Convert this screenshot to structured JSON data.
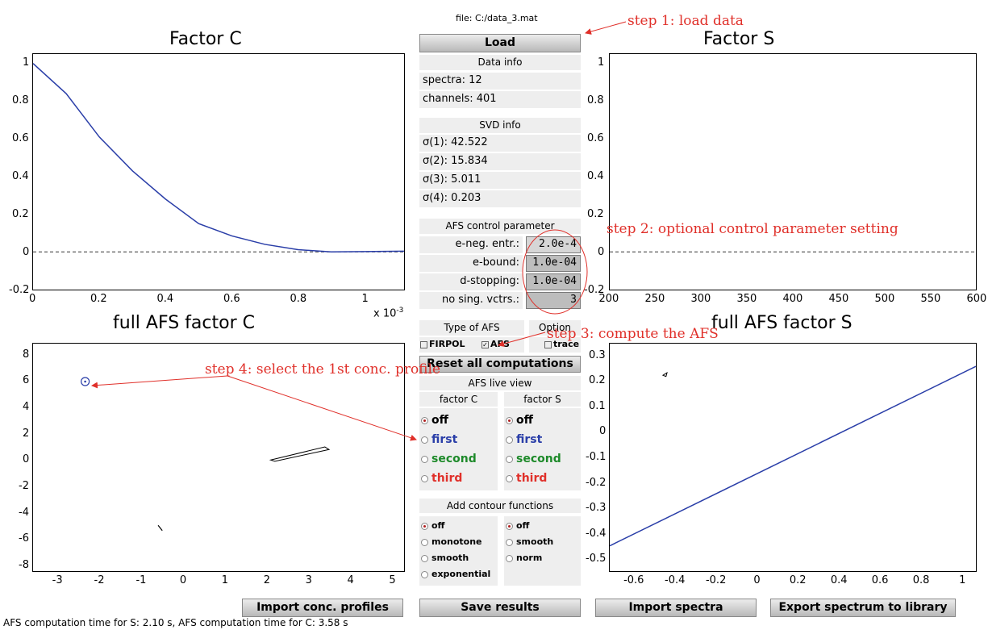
{
  "file_label": "file: C:/data_3.mat",
  "buttons": {
    "load": "Load",
    "reset": "Reset all computations",
    "import_conc": "Import conc. profiles",
    "save_results": "Save results",
    "import_spectra": "Import spectra",
    "export_spectrum": "Export spectrum to library"
  },
  "data_info": {
    "header": "Data info",
    "spectra": "spectra: 12",
    "channels": "channels: 401"
  },
  "svd_info": {
    "header": "SVD info",
    "s1": "σ(1): 42.522",
    "s2": "σ(2): 15.834",
    "s3": "σ(3): 5.011",
    "s4": "σ(4): 0.203"
  },
  "afs_params": {
    "header": "AFS control parameter",
    "neg_entr_label": "e-neg. entr.:",
    "neg_entr_value": "2.0e-4",
    "bound_label": "e-bound:",
    "bound_value": "1.0e-04",
    "stopping_label": "d-stopping:",
    "stopping_value": "1.0e-04",
    "nsing_label": "no sing. vctrs.:",
    "nsing_value": "3"
  },
  "afs_type": {
    "header": "Type of AFS",
    "firpol": "FIRPOL",
    "afs": "AFS",
    "option_header": "Option",
    "trace": "trace"
  },
  "live_view": {
    "header": "AFS live view",
    "factor_c": "factor C",
    "factor_s": "factor S",
    "opts": [
      "off",
      "first",
      "second",
      "third"
    ],
    "colors": [
      "#000000",
      "#2a3ea8",
      "#1e8a2a",
      "#e0302a"
    ]
  },
  "contour": {
    "header": "Add contour functions",
    "left": [
      "off",
      "monotone",
      "smooth",
      "exponential"
    ],
    "right": [
      "off",
      "smooth",
      "norm"
    ]
  },
  "status": "AFS computation time for S: 2.10 s,  AFS computation time for C: 3.58 s",
  "annotations": {
    "step1": "step 1: load data",
    "step2": "step 2: optional control parameter setting",
    "step3": "step 3: compute the AFS",
    "step4": "step 4: select the 1st conc. profile"
  },
  "plots": {
    "factor_c": {
      "title": "Factor C",
      "xticks": [
        "0",
        "0.2",
        "0.4",
        "0.6",
        "0.8",
        "1"
      ],
      "yticks": [
        "1",
        "0.8",
        "0.6",
        "0.4",
        "0.2",
        "0",
        "-0.2"
      ],
      "exponent": "x 10",
      "exponent_power": "-3"
    },
    "factor_s": {
      "title": "Factor S",
      "xticks": [
        "200",
        "250",
        "300",
        "350",
        "400",
        "450",
        "500",
        "550",
        "600"
      ],
      "yticks": [
        "1",
        "0.8",
        "0.6",
        "0.4",
        "0.2",
        "0",
        "-0.2"
      ]
    },
    "full_afs_c": {
      "title": "full AFS factor C",
      "xticks": [
        "-3",
        "-2",
        "-1",
        "0",
        "1",
        "2",
        "3",
        "4",
        "5"
      ],
      "yticks": [
        "8",
        "6",
        "4",
        "2",
        "0",
        "-2",
        "-4",
        "-6",
        "-8"
      ]
    },
    "full_afs_s": {
      "title": "full AFS factor S",
      "xticks": [
        "-0.6",
        "-0.4",
        "-0.2",
        "0",
        "0.2",
        "0.4",
        "0.6",
        "0.8",
        "1"
      ],
      "yticks": [
        "0.3",
        "0.2",
        "0.1",
        "0",
        "-0.1",
        "-0.2",
        "-0.3",
        "-0.4",
        "-0.5"
      ]
    }
  },
  "chart_data": [
    {
      "type": "line",
      "title": "Factor C",
      "x": [
        0,
        0.0001,
        0.0002,
        0.0003,
        0.0004,
        0.0005,
        0.0006,
        0.0007,
        0.0008,
        0.0009,
        0.001,
        0.00112
      ],
      "series": [
        {
          "values": [
            1.0,
            0.84,
            0.61,
            0.43,
            0.28,
            0.15,
            0.085,
            0.04,
            0.012,
            0.0,
            0.002,
            0.004
          ]
        }
      ],
      "xlim": [
        0,
        0.00112
      ],
      "ylim": [
        -0.2,
        1.05
      ],
      "baseline": 0
    },
    {
      "type": "line",
      "title": "Factor S",
      "series": [],
      "xlim": [
        200,
        600
      ],
      "ylim": [
        -0.2,
        1.05
      ],
      "baseline": 0
    },
    {
      "type": "scatter",
      "title": "full AFS factor C",
      "xlim": [
        -3.6,
        5.3
      ],
      "ylim": [
        -8.5,
        8.9
      ],
      "marker": {
        "x": -2.35,
        "y": 6.0
      },
      "region": [
        [
          2.1,
          0.0
        ],
        [
          3.4,
          1.0
        ],
        [
          3.5,
          0.8
        ],
        [
          2.2,
          -0.1
        ]
      ],
      "segment": [
        [
          -0.6,
          -5.0
        ],
        [
          -0.5,
          -5.4
        ]
      ]
    },
    {
      "type": "line",
      "title": "full AFS factor S",
      "xlim": [
        -0.72,
        1.07
      ],
      "ylim": [
        -0.55,
        0.35
      ],
      "series": [
        {
          "x": [
            -0.72,
            1.07
          ],
          "values": [
            -0.45,
            0.26
          ]
        }
      ],
      "triangle": [
        [
          -0.46,
          0.225
        ],
        [
          -0.44,
          0.235
        ],
        [
          -0.445,
          0.22
        ]
      ]
    }
  ]
}
